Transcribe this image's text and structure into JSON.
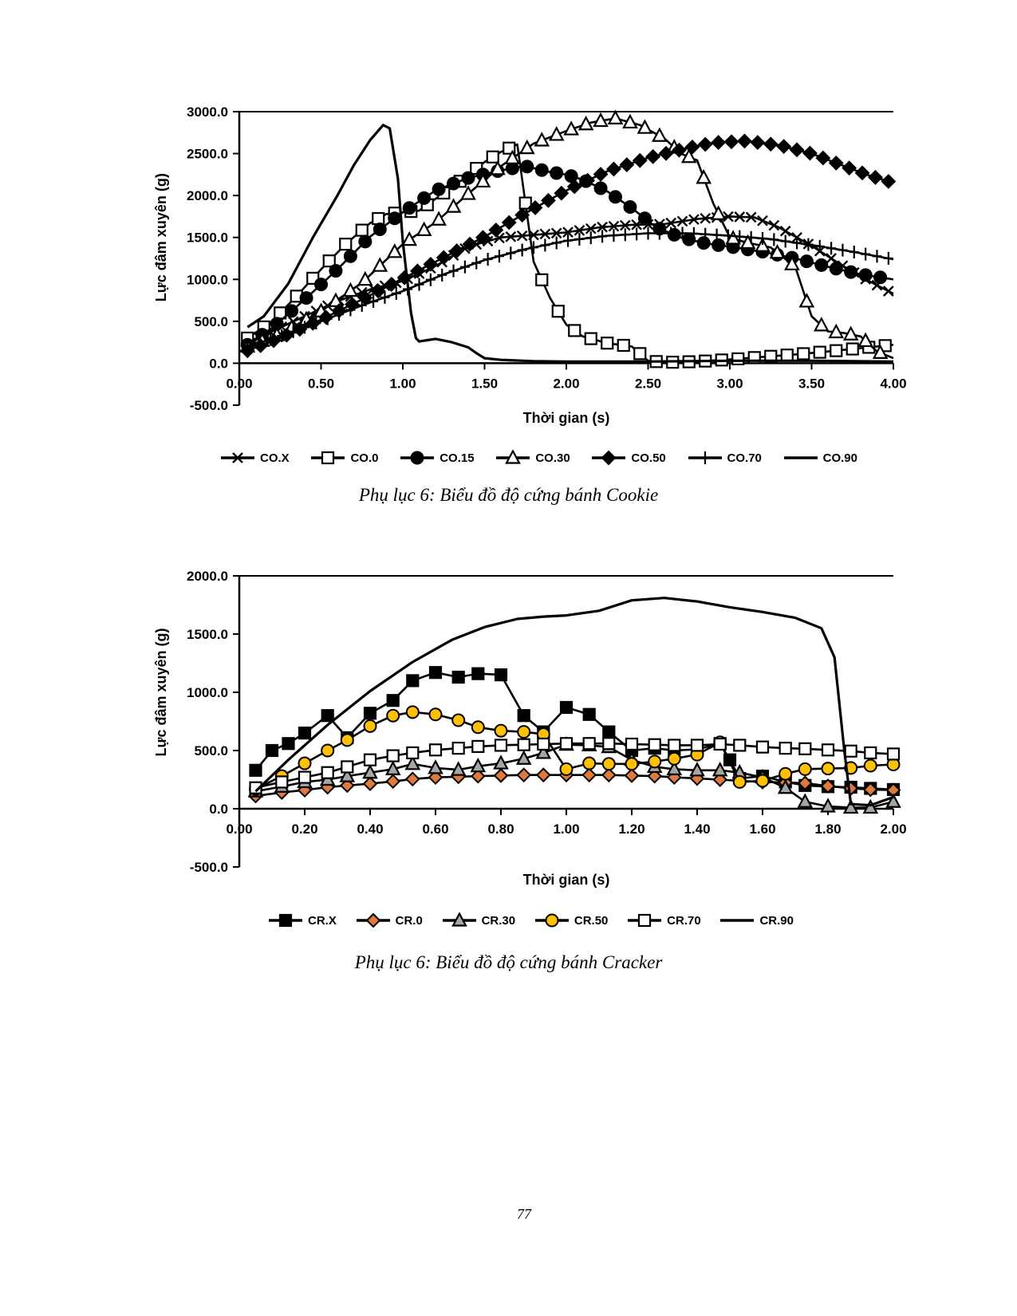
{
  "page": {
    "number": "77"
  },
  "captions": {
    "cookie": "Phụ lục 6: Biểu đồ độ cứng bánh Cookie",
    "cracker": "Phụ lục 6: Biểu đồ độ cứng bánh Cracker"
  },
  "colors": {
    "line": "#000000",
    "cr0_diamond": "#E0793C",
    "cr30_triangle": "#A6A6A6",
    "cr50_circle": "#FFC000"
  },
  "chart_data": [
    {
      "type": "line",
      "title": "",
      "xlabel": "Thời gian (s)",
      "ylabel": "Lực đâm xuyên (g)",
      "xlim": [
        0,
        4
      ],
      "ylim": [
        -500,
        3000
      ],
      "grid": false,
      "legend_position": "bottom",
      "xticks": {
        "values": [
          0,
          0.5,
          1,
          1.5,
          2,
          2.5,
          3,
          3.5,
          4
        ],
        "labels": [
          "0.00",
          "0.50",
          "1.00",
          "1.50",
          "2.00",
          "2.50",
          "3.00",
          "3.50",
          "4.00"
        ]
      },
      "yticks": {
        "values": [
          -500,
          0,
          500,
          1000,
          1500,
          2000,
          2500,
          3000
        ],
        "labels": [
          "-500.0",
          "0.0",
          "500.0",
          "1000.0",
          "1500.0",
          "2000.0",
          "2500.0",
          "3000.0"
        ]
      },
      "series": [
        {
          "name": "CO.X",
          "marker": "x",
          "marker_step": 0.07,
          "x": [
            0.05,
            0.2,
            0.4,
            0.6,
            0.8,
            1.0,
            1.2,
            1.4,
            1.6,
            1.8,
            2.0,
            2.2,
            2.4,
            2.6,
            2.8,
            3.0,
            3.15,
            3.3,
            3.5,
            3.7,
            3.85,
            4.0
          ],
          "y": [
            250,
            380,
            560,
            740,
            880,
            980,
            1160,
            1390,
            1500,
            1530,
            1560,
            1620,
            1650,
            1660,
            1720,
            1750,
            1740,
            1620,
            1400,
            1150,
            980,
            830
          ]
        },
        {
          "name": "CO.0",
          "marker": "square-open",
          "marker_fill": "#ffffff",
          "marker_step": 0.1,
          "x": [
            0.05,
            0.2,
            0.35,
            0.5,
            0.65,
            0.8,
            0.9,
            1.0,
            1.1,
            1.2,
            1.35,
            1.5,
            1.6,
            1.7,
            1.8,
            1.9,
            2.0,
            2.1,
            2.25,
            2.4,
            2.5,
            2.6,
            2.8,
            3.0,
            3.2,
            3.4,
            3.6,
            3.8,
            4.0
          ],
          "y": [
            300,
            500,
            800,
            1120,
            1420,
            1670,
            1780,
            1800,
            1820,
            1960,
            2170,
            2400,
            2520,
            2610,
            1210,
            780,
            460,
            320,
            240,
            200,
            30,
            10,
            20,
            45,
            75,
            105,
            140,
            180,
            220
          ]
        },
        {
          "name": "CO.15",
          "marker": "circle-filled",
          "marker_fill": "#000000",
          "marker_step": 0.09,
          "x": [
            0.05,
            0.2,
            0.4,
            0.6,
            0.8,
            1.0,
            1.2,
            1.4,
            1.6,
            1.75,
            1.9,
            2.0,
            2.1,
            2.25,
            2.4,
            2.55,
            2.7,
            2.85,
            3.0,
            3.2,
            3.4,
            3.6,
            3.8,
            4.0
          ],
          "y": [
            220,
            420,
            760,
            1120,
            1510,
            1800,
            2060,
            2210,
            2300,
            2350,
            2280,
            2250,
            2190,
            2050,
            1850,
            1620,
            1500,
            1430,
            1390,
            1330,
            1250,
            1150,
            1060,
            1000
          ]
        },
        {
          "name": "CO.30",
          "marker": "triangle-open",
          "marker_fill": "#ffffff",
          "marker_step": 0.09,
          "x": [
            0.05,
            0.25,
            0.5,
            0.75,
            1.0,
            1.2,
            1.4,
            1.6,
            1.8,
            2.0,
            2.15,
            2.3,
            2.45,
            2.6,
            2.7,
            2.8,
            2.9,
            3.0,
            3.1,
            3.25,
            3.4,
            3.5,
            3.6,
            3.7,
            3.8,
            3.9,
            4.0
          ],
          "y": [
            200,
            350,
            620,
            960,
            1420,
            1680,
            2020,
            2350,
            2620,
            2770,
            2870,
            2920,
            2840,
            2680,
            2500,
            2420,
            1900,
            1500,
            1440,
            1380,
            1150,
            560,
            380,
            360,
            320,
            140,
            60
          ]
        },
        {
          "name": "CO.50",
          "marker": "diamond-filled",
          "marker_fill": "#000000",
          "marker_step": 0.08,
          "x": [
            0.05,
            0.25,
            0.5,
            0.75,
            1.0,
            1.25,
            1.5,
            1.75,
            2.0,
            2.25,
            2.5,
            2.75,
            2.9,
            3.1,
            3.3,
            3.5,
            3.7,
            3.85,
            4.0
          ],
          "y": [
            150,
            300,
            520,
            760,
            1010,
            1260,
            1510,
            1790,
            2060,
            2290,
            2450,
            2570,
            2630,
            2650,
            2600,
            2500,
            2350,
            2240,
            2150
          ]
        },
        {
          "name": "CO.70",
          "marker": "plus",
          "marker_step": 0.07,
          "x": [
            0.05,
            0.25,
            0.5,
            0.75,
            1.0,
            1.25,
            1.5,
            1.75,
            2.0,
            2.25,
            2.5,
            2.75,
            3.0,
            3.25,
            3.5,
            3.75,
            4.0
          ],
          "y": [
            200,
            320,
            500,
            690,
            860,
            1060,
            1230,
            1360,
            1460,
            1520,
            1550,
            1550,
            1520,
            1480,
            1410,
            1330,
            1240
          ]
        },
        {
          "name": "CO.90",
          "marker": "none",
          "width": 3.2,
          "x": [
            0.05,
            0.15,
            0.3,
            0.45,
            0.6,
            0.7,
            0.8,
            0.88,
            0.92,
            0.97,
            1.0,
            1.05,
            1.08,
            1.1,
            1.15,
            1.2,
            1.3,
            1.4,
            1.45,
            1.5,
            1.6,
            1.8,
            2.0,
            2.5,
            3.0,
            3.5,
            4.0
          ],
          "y": [
            430,
            560,
            950,
            1500,
            2000,
            2360,
            2660,
            2840,
            2800,
            2200,
            1450,
            600,
            300,
            260,
            275,
            290,
            250,
            190,
            120,
            60,
            40,
            25,
            20,
            20,
            30,
            30,
            20
          ]
        }
      ]
    },
    {
      "type": "line",
      "title": "",
      "xlabel": "Thời gian (s)",
      "ylabel": "Lực đâm xuyên (g)",
      "xlim": [
        0,
        2
      ],
      "ylim": [
        -500,
        2000
      ],
      "grid": false,
      "legend_position": "bottom",
      "xticks": {
        "values": [
          0,
          0.2,
          0.4,
          0.6,
          0.8,
          1.0,
          1.2,
          1.4,
          1.6,
          1.8,
          2.0
        ],
        "labels": [
          "0.00",
          "0.20",
          "0.40",
          "0.60",
          "0.80",
          "1.00",
          "1.20",
          "1.40",
          "1.60",
          "1.80",
          "2.00"
        ]
      },
      "yticks": {
        "values": [
          -500,
          0,
          500,
          1000,
          1500,
          2000
        ],
        "labels": [
          "-500.0",
          "0.0",
          "500.0",
          "1000.0",
          "1500.0",
          "2000.0"
        ]
      },
      "series": [
        {
          "name": "CR.X",
          "marker": "square-filled",
          "marker_fill": "#000000",
          "x": [
            0.05,
            0.1,
            0.15,
            0.2,
            0.27,
            0.33,
            0.4,
            0.47,
            0.53,
            0.6,
            0.67,
            0.73,
            0.8,
            0.87,
            0.93,
            1.0,
            1.07,
            1.13,
            1.2,
            1.27,
            1.33,
            1.4,
            1.47,
            1.5,
            1.53,
            1.6,
            1.67,
            1.73,
            1.8,
            1.87,
            1.93,
            2.0
          ],
          "y": [
            330,
            500,
            560,
            650,
            800,
            610,
            820,
            930,
            1100,
            1170,
            1130,
            1160,
            1150,
            800,
            660,
            870,
            810,
            660,
            500,
            520,
            500,
            510,
            560,
            420,
            260,
            280,
            230,
            200,
            190,
            185,
            175,
            165
          ]
        },
        {
          "name": "CR.0",
          "marker": "diamond-filled",
          "marker_fill": "#E0793C",
          "x": [
            0.05,
            0.13,
            0.2,
            0.27,
            0.33,
            0.4,
            0.47,
            0.53,
            0.6,
            0.67,
            0.73,
            0.8,
            0.87,
            0.93,
            1.0,
            1.07,
            1.13,
            1.2,
            1.27,
            1.33,
            1.4,
            1.47,
            1.53,
            1.6,
            1.67,
            1.73,
            1.8,
            1.87,
            1.93,
            2.0
          ],
          "y": [
            110,
            140,
            160,
            185,
            200,
            215,
            235,
            255,
            270,
            275,
            280,
            285,
            290,
            290,
            290,
            290,
            290,
            285,
            280,
            270,
            260,
            250,
            240,
            230,
            225,
            220,
            195,
            175,
            165,
            160
          ]
        },
        {
          "name": "CR.30",
          "marker": "triangle-filled",
          "marker_fill": "#A6A6A6",
          "x": [
            0.05,
            0.13,
            0.2,
            0.27,
            0.33,
            0.4,
            0.47,
            0.53,
            0.6,
            0.67,
            0.73,
            0.8,
            0.87,
            0.93,
            1.0,
            1.07,
            1.13,
            1.2,
            1.27,
            1.33,
            1.4,
            1.47,
            1.53,
            1.6,
            1.67,
            1.73,
            1.8,
            1.87,
            1.93,
            2.0
          ],
          "y": [
            150,
            190,
            230,
            250,
            280,
            310,
            340,
            385,
            350,
            335,
            365,
            390,
            430,
            480,
            550,
            545,
            530,
            420,
            360,
            340,
            330,
            330,
            310,
            270,
            180,
            60,
            20,
            10,
            10,
            60
          ]
        },
        {
          "name": "CR.50",
          "marker": "circle-filled",
          "marker_fill": "#FFC000",
          "x": [
            0.05,
            0.13,
            0.2,
            0.27,
            0.33,
            0.4,
            0.47,
            0.53,
            0.6,
            0.67,
            0.73,
            0.8,
            0.87,
            0.93,
            1.0,
            1.07,
            1.13,
            1.2,
            1.27,
            1.33,
            1.4,
            1.47,
            1.53,
            1.6,
            1.67,
            1.73,
            1.8,
            1.87,
            1.93,
            2.0
          ],
          "y": [
            170,
            280,
            390,
            500,
            590,
            710,
            800,
            830,
            810,
            760,
            700,
            670,
            660,
            640,
            340,
            390,
            385,
            385,
            405,
            430,
            465,
            570,
            230,
            240,
            300,
            340,
            345,
            350,
            370,
            380
          ]
        },
        {
          "name": "CR.70",
          "marker": "square-open",
          "marker_fill": "#ffffff",
          "x": [
            0.05,
            0.13,
            0.2,
            0.27,
            0.33,
            0.4,
            0.47,
            0.53,
            0.6,
            0.67,
            0.73,
            0.8,
            0.87,
            0.93,
            1.0,
            1.07,
            1.13,
            1.2,
            1.27,
            1.33,
            1.4,
            1.47,
            1.53,
            1.6,
            1.67,
            1.73,
            1.8,
            1.87,
            1.93,
            2.0
          ],
          "y": [
            180,
            230,
            270,
            310,
            360,
            420,
            455,
            480,
            505,
            520,
            535,
            545,
            550,
            555,
            560,
            560,
            560,
            555,
            550,
            545,
            545,
            555,
            545,
            530,
            520,
            515,
            505,
            495,
            480,
            470
          ]
        },
        {
          "name": "CR.90",
          "marker": "none",
          "width": 3.2,
          "x": [
            0.05,
            0.15,
            0.27,
            0.4,
            0.53,
            0.65,
            0.75,
            0.85,
            0.93,
            1.0,
            1.1,
            1.2,
            1.3,
            1.4,
            1.5,
            1.6,
            1.7,
            1.78,
            1.82,
            1.85,
            1.87,
            1.93,
            2.0
          ],
          "y": [
            150,
            420,
            720,
            1010,
            1260,
            1450,
            1560,
            1630,
            1650,
            1660,
            1700,
            1790,
            1810,
            1780,
            1730,
            1690,
            1640,
            1550,
            1300,
            500,
            40,
            30,
            100
          ]
        }
      ]
    }
  ]
}
